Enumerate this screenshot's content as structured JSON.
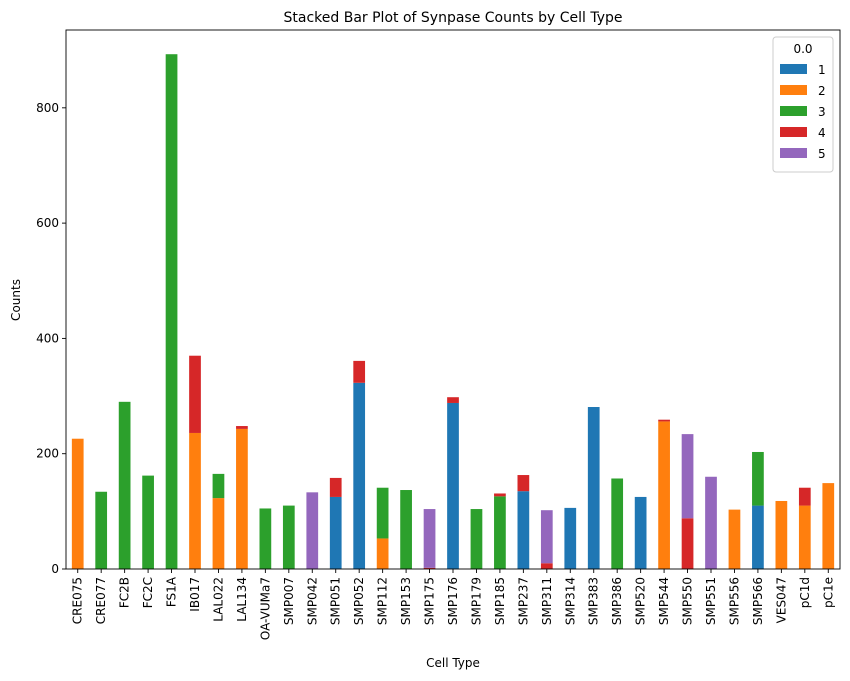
{
  "chart_data": {
    "type": "bar",
    "stacked": true,
    "title": "Stacked Bar Plot of Synpase Counts by Cell Type",
    "xlabel": "Cell Type",
    "ylabel": "Counts",
    "ylim": [
      0,
      935
    ],
    "yticks": [
      0,
      200,
      400,
      600,
      800
    ],
    "grid": false,
    "legend": {
      "title": "0.0",
      "placement": "top-right"
    },
    "categories": [
      "CRE075",
      "CRE077",
      "FC2B",
      "FC2C",
      "FS1A",
      "IB017",
      "LAL022",
      "LAL134",
      "OA-VUMa7",
      "SMP007",
      "SMP042",
      "SMP051",
      "SMP052",
      "SMP112",
      "SMP153",
      "SMP175",
      "SMP176",
      "SMP179",
      "SMP185",
      "SMP237",
      "SMP311",
      "SMP314",
      "SMP383",
      "SMP386",
      "SMP520",
      "SMP544",
      "SMP550",
      "SMP551",
      "SMP556",
      "SMP566",
      "VES047",
      "pC1d",
      "pC1e"
    ],
    "series": [
      {
        "name": "1",
        "color": "#1f77b4",
        "values": [
          0,
          0,
          0,
          0,
          0,
          0,
          0,
          0,
          0,
          0,
          0,
          125,
          323,
          0,
          0,
          0,
          288,
          0,
          0,
          135,
          0,
          106,
          281,
          0,
          125,
          0,
          0,
          0,
          0,
          110,
          0,
          0,
          0
        ]
      },
      {
        "name": "2",
        "color": "#ff7f0e",
        "values": [
          226,
          0,
          0,
          0,
          0,
          236,
          123,
          243,
          0,
          0,
          0,
          0,
          0,
          53,
          0,
          0,
          0,
          0,
          0,
          0,
          0,
          0,
          0,
          0,
          0,
          256,
          0,
          0,
          103,
          0,
          118,
          110,
          149
        ]
      },
      {
        "name": "3",
        "color": "#2ca02c",
        "values": [
          0,
          134,
          290,
          162,
          893,
          0,
          42,
          0,
          105,
          110,
          0,
          0,
          0,
          88,
          137,
          0,
          0,
          104,
          126,
          0,
          0,
          0,
          0,
          157,
          0,
          0,
          0,
          0,
          0,
          93,
          0,
          0,
          0
        ]
      },
      {
        "name": "4",
        "color": "#d62728",
        "values": [
          0,
          0,
          0,
          0,
          0,
          134,
          0,
          5,
          0,
          0,
          0,
          33,
          38,
          0,
          0,
          2,
          10,
          0,
          5,
          28,
          10,
          0,
          0,
          0,
          0,
          3,
          88,
          0,
          0,
          0,
          0,
          31,
          0
        ]
      },
      {
        "name": "5",
        "color": "#9467bd",
        "values": [
          0,
          0,
          0,
          0,
          0,
          0,
          0,
          0,
          0,
          0,
          133,
          0,
          0,
          0,
          0,
          102,
          0,
          0,
          0,
          0,
          92,
          0,
          0,
          0,
          0,
          0,
          146,
          160,
          0,
          0,
          0,
          0,
          0
        ]
      }
    ]
  }
}
